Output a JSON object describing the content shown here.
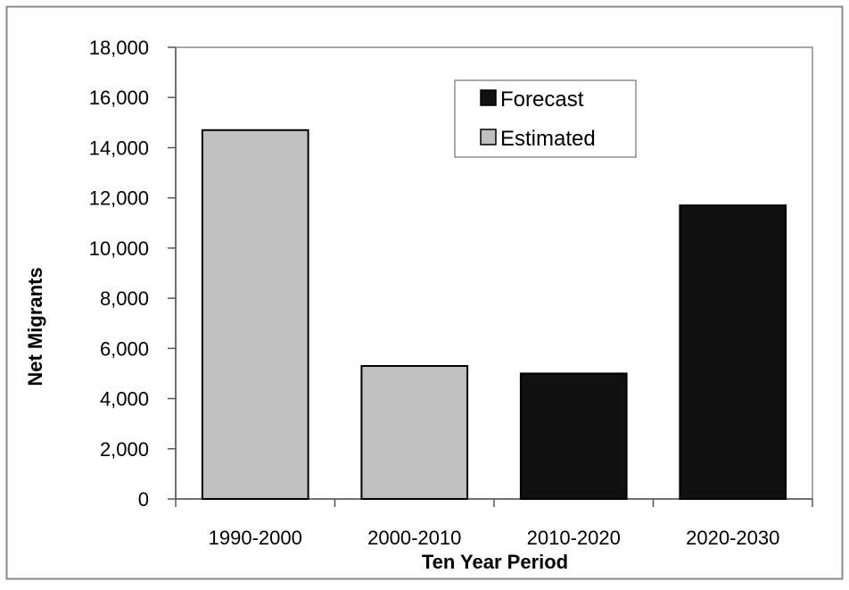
{
  "chart_data": {
    "type": "bar",
    "title": "",
    "xlabel": "Ten Year Period",
    "ylabel": "Net Migrants",
    "categories": [
      "1990-2000",
      "2000-2010",
      "2010-2020",
      "2020-2030"
    ],
    "values": [
      14700,
      5300,
      5000,
      11700
    ],
    "bar_types": [
      "Estimated",
      "Estimated",
      "Forecast",
      "Forecast"
    ],
    "ylim": [
      0,
      18000
    ],
    "yticks": [
      0,
      2000,
      4000,
      6000,
      8000,
      10000,
      12000,
      14000,
      16000,
      18000
    ],
    "ytick_labels": [
      "0",
      "2,000",
      "4,000",
      "6,000",
      "8,000",
      "10,000",
      "12,000",
      "14,000",
      "16,000",
      "18,000"
    ],
    "grid": false,
    "legend": {
      "position": "top-right",
      "entries": [
        {
          "name": "Forecast",
          "color": "#111111"
        },
        {
          "name": "Estimated",
          "color": "#c0c0c0"
        }
      ]
    },
    "colors": {
      "Forecast": "#111111",
      "Estimated": "#c0c0c0",
      "frame": "#888888",
      "axis": "#555555"
    }
  }
}
